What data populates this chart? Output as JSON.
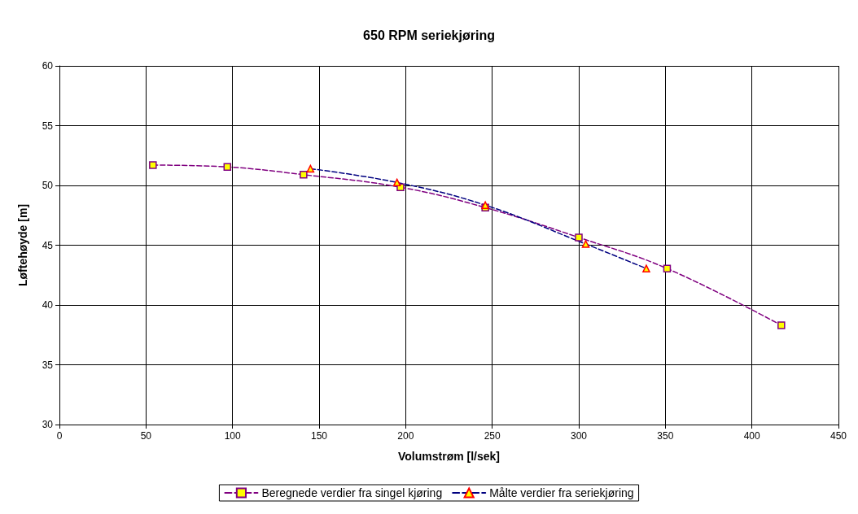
{
  "chart_data": {
    "type": "line",
    "title": "650 RPM seriekjøring",
    "xlabel": "Volumstrøm [l/sek]",
    "ylabel": "Løftehøyde [m]",
    "xlim": [
      0,
      450
    ],
    "xticks": [
      0,
      50,
      100,
      150,
      200,
      250,
      300,
      350,
      400,
      450
    ],
    "ylim": [
      30,
      60
    ],
    "yticks": [
      30,
      35,
      40,
      45,
      50,
      55,
      60
    ],
    "grid": true,
    "legend": "bottom",
    "line_style": "dashed",
    "series": [
      {
        "name": "Beregnede verdier fra singel kjøring",
        "color": "#800080",
        "marker": "square",
        "x": [
          54,
          97,
          141,
          197,
          246,
          300,
          351,
          417
        ],
        "values": [
          51.7,
          51.55,
          50.9,
          49.85,
          48.15,
          45.65,
          43.05,
          38.3
        ]
      },
      {
        "name": "Målte verdier fra seriekjøring",
        "color": "#000080",
        "marker": "triangle",
        "x": [
          145,
          195,
          246,
          304,
          339
        ],
        "values": [
          51.4,
          50.25,
          48.35,
          45.1,
          43.05
        ]
      }
    ]
  }
}
